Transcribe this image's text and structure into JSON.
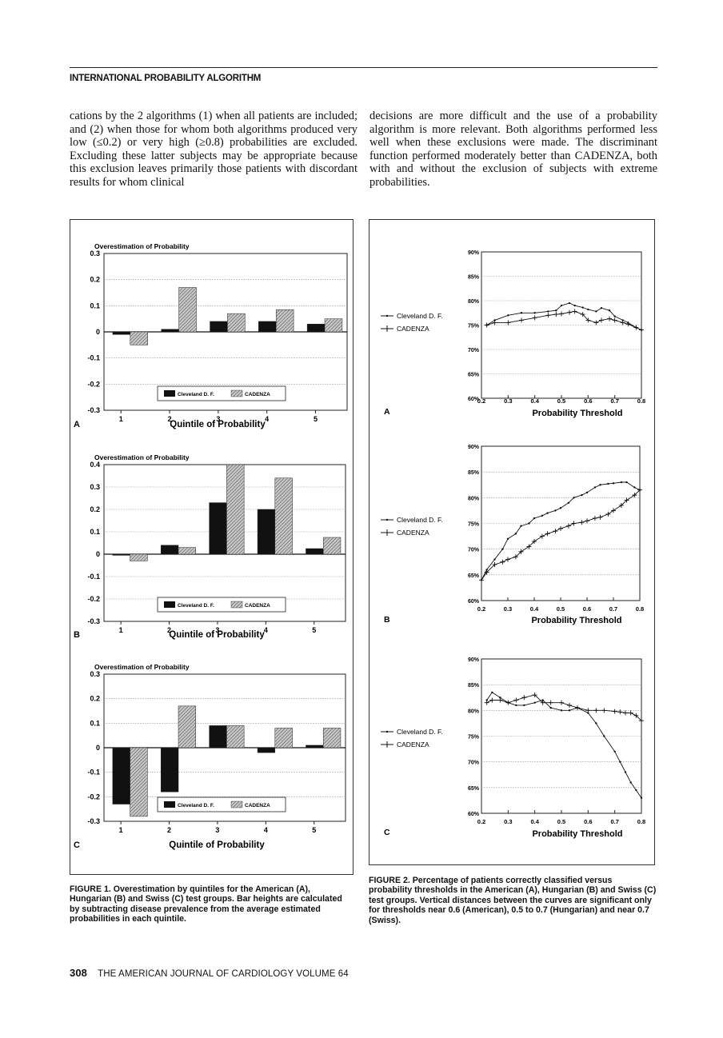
{
  "header": "INTERNATIONAL PROBABILITY ALGORITHM",
  "body_left": "cations by the 2 algorithms (1) when all patients are included; and (2) when those for whom both algorithms produced very low (≤0.2) or very high (≥0.8) probabilities are excluded. Excluding these latter subjects may be appropriate because this exclusion leaves primarily those patients with discordant results for whom clinical",
  "body_right": "decisions are more difficult and the use of a probability algorithm is more relevant. Both algorithms performed less well when these exclusions were made. The discriminant function performed moderately better than CADENZA, both with and without the exclusion of subjects with extreme probabilities.",
  "figure1_caption": "FIGURE 1. Overestimation by quintiles for the American (A), Hungarian (B) and Swiss (C) test groups. Bar heights are calculated by subtracting disease prevalence from the average estimated probabilities in each quintile.",
  "figure2_caption": "FIGURE 2. Percentage of patients correctly classified versus probability thresholds in the American (A), Hungarian (B) and Swiss (C) test groups. Vertical distances between the curves are significant only for thresholds near 0.6 (American), 0.5 to 0.7 (Hungarian) and near 0.7 (Swiss).",
  "footer": {
    "page": "308",
    "journal": "THE AMERICAN JOURNAL OF CARDIOLOGY   VOLUME 64"
  },
  "colors": {
    "cleveland": "#111111",
    "cadenza_hatch": "#8a8a8a",
    "grid": "#999999"
  },
  "chart_data": [
    {
      "type": "bar",
      "panel": "A",
      "title": "Overestimation of Probability",
      "xlabel": "Quintile of Probability",
      "categories": [
        "1",
        "2",
        "3",
        "4",
        "5"
      ],
      "y_ticks": [
        "0.3",
        "0.2",
        "0.1",
        "0",
        "-0.1",
        "-0.2",
        "-0.3"
      ],
      "ylim": [
        -0.3,
        0.3
      ],
      "series": [
        {
          "name": "Cleveland D. F.",
          "values": [
            -0.01,
            0.01,
            0.04,
            0.04,
            0.03
          ]
        },
        {
          "name": "CADENZA",
          "values": [
            -0.05,
            0.17,
            0.07,
            0.085,
            0.05
          ]
        }
      ],
      "legend": [
        "Cleveland D. F.",
        "CADENZA"
      ]
    },
    {
      "type": "bar",
      "panel": "B",
      "title": "Overestimation of Probability",
      "xlabel": "Quintile of Probability",
      "categories": [
        "1",
        "2",
        "3",
        "4",
        "5"
      ],
      "y_ticks": [
        "0.4",
        "0.3",
        "0.2",
        "0.1",
        "0",
        "-0.1",
        "-0.2",
        "-0.3"
      ],
      "ylim": [
        -0.3,
        0.4
      ],
      "series": [
        {
          "name": "Cleveland D. F.",
          "values": [
            -0.005,
            0.04,
            0.23,
            0.2,
            0.025
          ]
        },
        {
          "name": "CADENZA",
          "values": [
            -0.03,
            0.03,
            0.4,
            0.34,
            0.075
          ]
        }
      ],
      "legend": [
        "Cleveland D. F.",
        "CADENZA"
      ]
    },
    {
      "type": "bar",
      "panel": "C",
      "title": "Overestimation of Probability",
      "xlabel": "Quintile of Probability",
      "categories": [
        "1",
        "2",
        "3",
        "4",
        "5"
      ],
      "y_ticks": [
        "0.3",
        "0.2",
        "0.1",
        "0",
        "-0.1",
        "-0.2",
        "-0.3"
      ],
      "ylim": [
        -0.3,
        0.3
      ],
      "series": [
        {
          "name": "Cleveland D. F.",
          "values": [
            -0.23,
            -0.18,
            0.09,
            -0.02,
            0.01
          ]
        },
        {
          "name": "CADENZA",
          "values": [
            -0.28,
            0.17,
            0.09,
            0.08,
            0.08
          ]
        }
      ],
      "legend": [
        "Cleveland D. F.",
        "CADENZA"
      ]
    },
    {
      "type": "line",
      "panel": "A",
      "xlabel": "Probability Threshold",
      "x_ticks": [
        "0.2",
        "0.3",
        "0.4",
        "0.5",
        "0.6",
        "0.7",
        "0.8"
      ],
      "y_ticks": [
        "90%",
        "85%",
        "80%",
        "75%",
        "70%",
        "65%",
        "60%"
      ],
      "xlim": [
        0.2,
        0.8
      ],
      "ylim": [
        60,
        90
      ],
      "series": [
        {
          "name": "Cleveland D. F.",
          "x": [
            0.22,
            0.25,
            0.3,
            0.35,
            0.4,
            0.45,
            0.48,
            0.5,
            0.53,
            0.55,
            0.58,
            0.6,
            0.63,
            0.65,
            0.68,
            0.7,
            0.73,
            0.75,
            0.78,
            0.8
          ],
          "y": [
            75,
            76,
            77,
            77.5,
            77.5,
            77.8,
            78,
            79,
            79.5,
            79,
            78.6,
            78.2,
            77.8,
            78.5,
            78,
            76.8,
            76,
            75.5,
            74.5,
            74
          ]
        },
        {
          "name": "CADENZA",
          "x": [
            0.22,
            0.25,
            0.3,
            0.35,
            0.4,
            0.45,
            0.48,
            0.5,
            0.53,
            0.55,
            0.58,
            0.6,
            0.63,
            0.65,
            0.68,
            0.7,
            0.73,
            0.75,
            0.78,
            0.8
          ],
          "y": [
            75,
            75.5,
            75.5,
            76,
            76.5,
            77,
            77.2,
            77.3,
            77.6,
            77.8,
            77.2,
            76,
            75.5,
            76,
            76.3,
            76,
            75.5,
            75.2,
            74.5,
            74
          ]
        }
      ],
      "legend": [
        "Cleveland D. F.",
        "CADENZA"
      ]
    },
    {
      "type": "line",
      "panel": "B",
      "xlabel": "Probability Threshold",
      "x_ticks": [
        "0.2",
        "0.3",
        "0.4",
        "0.5",
        "0.6",
        "0.7",
        "0.8"
      ],
      "y_ticks": [
        "90%",
        "85%",
        "80%",
        "75%",
        "70%",
        "65%",
        "60%"
      ],
      "xlim": [
        0.2,
        0.8
      ],
      "ylim": [
        60,
        90
      ],
      "series": [
        {
          "name": "Cleveland D. F.",
          "x": [
            0.2,
            0.22,
            0.25,
            0.28,
            0.3,
            0.33,
            0.35,
            0.38,
            0.4,
            0.43,
            0.45,
            0.48,
            0.5,
            0.53,
            0.55,
            0.58,
            0.6,
            0.63,
            0.65,
            0.68,
            0.7,
            0.73,
            0.75,
            0.78,
            0.8
          ],
          "y": [
            64,
            66,
            68,
            70,
            72,
            73,
            74.5,
            75,
            76,
            76.5,
            77,
            77.5,
            78,
            79,
            80,
            80.5,
            81,
            82,
            82.5,
            82.7,
            82.8,
            83,
            83,
            82,
            81.5
          ]
        },
        {
          "name": "CADENZA",
          "x": [
            0.2,
            0.22,
            0.25,
            0.28,
            0.3,
            0.33,
            0.35,
            0.38,
            0.4,
            0.43,
            0.45,
            0.48,
            0.5,
            0.53,
            0.55,
            0.58,
            0.6,
            0.63,
            0.65,
            0.68,
            0.7,
            0.73,
            0.75,
            0.78,
            0.8
          ],
          "y": [
            64,
            65.5,
            67,
            67.5,
            68,
            68.5,
            69.5,
            70.5,
            71.5,
            72.5,
            73,
            73.5,
            74,
            74.5,
            75,
            75.2,
            75.5,
            76,
            76.2,
            76.8,
            77.5,
            78.5,
            79.5,
            80.5,
            81.5
          ]
        }
      ],
      "legend": [
        "Cleveland D. F.",
        "CADENZA"
      ]
    },
    {
      "type": "line",
      "panel": "C",
      "xlabel": "Probability Threshold",
      "x_ticks": [
        "0.2",
        "0.3",
        "0.4",
        "0.5",
        "0.6",
        "0.7",
        "0.8"
      ],
      "y_ticks": [
        "90%",
        "85%",
        "80%",
        "75%",
        "70%",
        "65%",
        "60%"
      ],
      "xlim": [
        0.2,
        0.8
      ],
      "ylim": [
        60,
        90
      ],
      "series": [
        {
          "name": "Cleveland D. F.",
          "x": [
            0.22,
            0.24,
            0.27,
            0.3,
            0.33,
            0.36,
            0.4,
            0.43,
            0.46,
            0.5,
            0.53,
            0.56,
            0.6,
            0.63,
            0.66,
            0.7,
            0.72,
            0.74,
            0.76,
            0.78,
            0.8
          ],
          "y": [
            82,
            83.5,
            82.5,
            81.5,
            81,
            81,
            81.5,
            82,
            80.5,
            80,
            80,
            80.5,
            79.5,
            77.5,
            75,
            72,
            70,
            68,
            66,
            64.5,
            63
          ]
        },
        {
          "name": "CADENZA",
          "x": [
            0.22,
            0.24,
            0.27,
            0.3,
            0.33,
            0.36,
            0.4,
            0.43,
            0.46,
            0.5,
            0.53,
            0.56,
            0.6,
            0.63,
            0.66,
            0.7,
            0.72,
            0.74,
            0.76,
            0.78,
            0.8
          ],
          "y": [
            81.5,
            82,
            82,
            81.5,
            82,
            82.5,
            83,
            81.5,
            81.5,
            81.5,
            81,
            80.5,
            80,
            80,
            80,
            79.8,
            79.7,
            79.5,
            79.5,
            79,
            78
          ]
        }
      ],
      "legend": [
        "Cleveland D. F.",
        "CADENZA"
      ]
    }
  ]
}
